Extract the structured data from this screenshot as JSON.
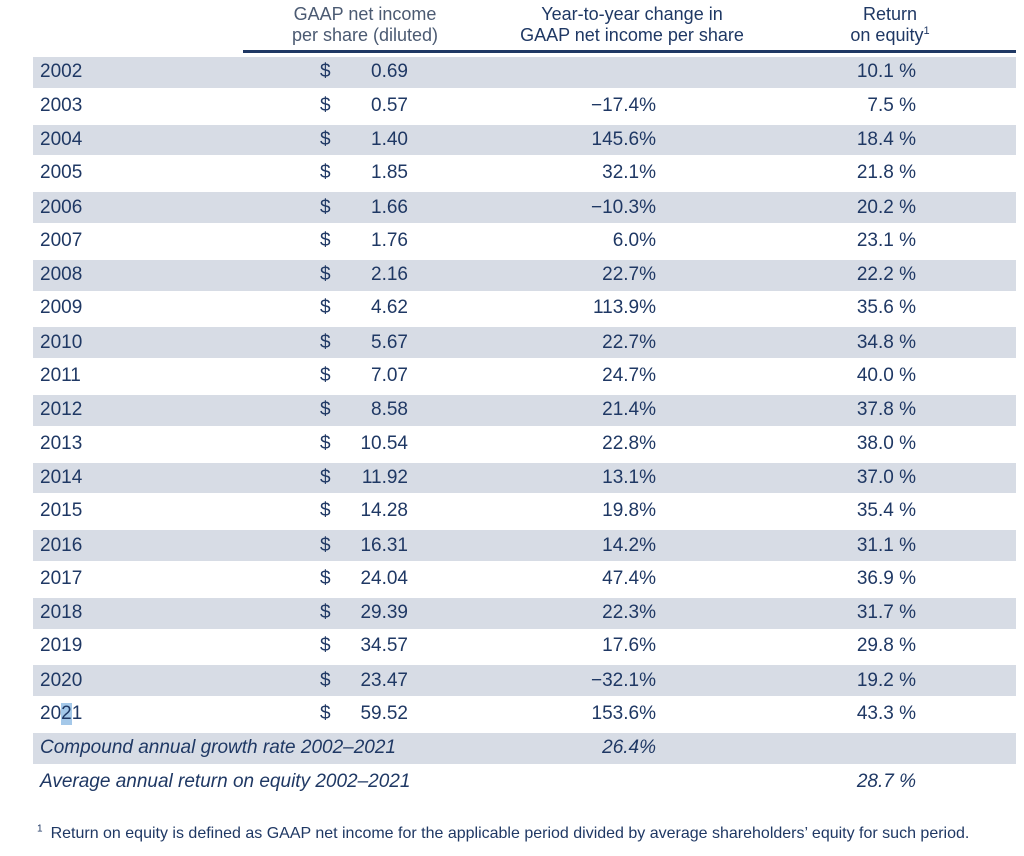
{
  "colors": {
    "text_navy": "#1f3864",
    "header_secondary": "#4b5a72",
    "row_band": "#d7dce5",
    "header_rule": "#1f3864",
    "selection_highlight": "#a4c8e9"
  },
  "table": {
    "currency_symbol": "$",
    "headers": {
      "eps_line1": "GAAP net income",
      "eps_line2": "per share (diluted)",
      "change_line1": "Year-to-year change in",
      "change_line2": "GAAP net income per share",
      "roe_line1": "Return",
      "roe_line2": "on equity",
      "roe_footnote_marker": "1"
    },
    "rows": [
      {
        "year": "2002",
        "eps": "0.69",
        "change": "",
        "roe": "10.1 %"
      },
      {
        "year": "2003",
        "eps": "0.57",
        "change": "−17.4%",
        "roe": "7.5 %"
      },
      {
        "year": "2004",
        "eps": "1.40",
        "change": "145.6%",
        "roe": "18.4 %"
      },
      {
        "year": "2005",
        "eps": "1.85",
        "change": "32.1%",
        "roe": "21.8 %"
      },
      {
        "year": "2006",
        "eps": "1.66",
        "change": "−10.3%",
        "roe": "20.2 %"
      },
      {
        "year": "2007",
        "eps": "1.76",
        "change": "6.0%",
        "roe": "23.1 %"
      },
      {
        "year": "2008",
        "eps": "2.16",
        "change": "22.7%",
        "roe": "22.2 %"
      },
      {
        "year": "2009",
        "eps": "4.62",
        "change": "113.9%",
        "roe": "35.6 %"
      },
      {
        "year": "2010",
        "eps": "5.67",
        "change": "22.7%",
        "roe": "34.8 %"
      },
      {
        "year": "2011",
        "eps": "7.07",
        "change": "24.7%",
        "roe": "40.0 %"
      },
      {
        "year": "2012",
        "eps": "8.58",
        "change": "21.4%",
        "roe": "37.8 %"
      },
      {
        "year": "2013",
        "eps": "10.54",
        "change": "22.8%",
        "roe": "38.0 %"
      },
      {
        "year": "2014",
        "eps": "11.92",
        "change": "13.1%",
        "roe": "37.0 %"
      },
      {
        "year": "2015",
        "eps": "14.28",
        "change": "19.8%",
        "roe": "35.4 %"
      },
      {
        "year": "2016",
        "eps": "16.31",
        "change": "14.2%",
        "roe": "31.1 %"
      },
      {
        "year": "2017",
        "eps": "24.04",
        "change": "47.4%",
        "roe": "36.9 %"
      },
      {
        "year": "2018",
        "eps": "29.39",
        "change": "22.3%",
        "roe": "31.7 %"
      },
      {
        "year": "2019",
        "eps": "34.57",
        "change": "17.6%",
        "roe": "29.8 %"
      },
      {
        "year": "2020",
        "eps": "23.47",
        "change": "−32.1%",
        "roe": "19.2 %"
      },
      {
        "year": "2021",
        "eps": "59.52",
        "change": "153.6%",
        "roe": "43.3 %"
      }
    ],
    "summary_rows": [
      {
        "label": "Compound annual growth rate 2002–2021",
        "change": "26.4%",
        "roe": ""
      },
      {
        "label": "Average annual return on equity 2002–2021",
        "change": "",
        "roe": "28.7 %"
      }
    ],
    "footnote": {
      "marker": "1",
      "text": "Return on equity is defined as GAAP net income for the applicable period divided by average shareholders’ equity for such period."
    }
  },
  "selection_highlight": {
    "row_year": "2021",
    "before": "20",
    "selected_text": "2",
    "after": "1"
  }
}
